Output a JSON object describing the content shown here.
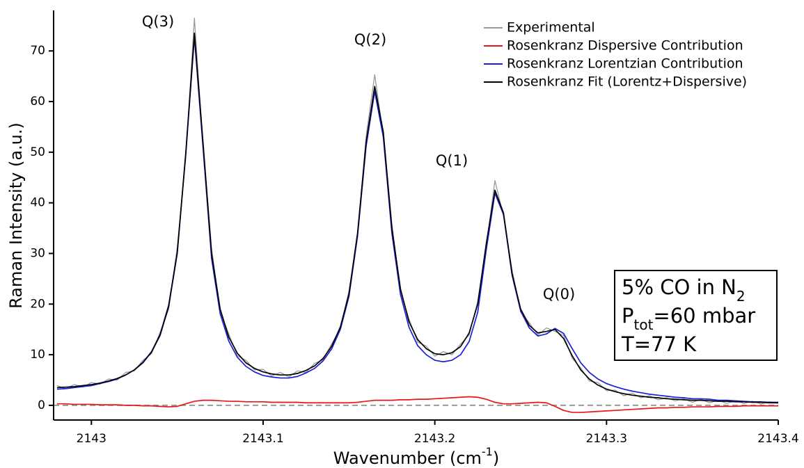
{
  "chart_data": {
    "type": "line",
    "ylabel": "Raman Intensity (a.u.)",
    "xlabel": [
      "Wavenumber (cm",
      {
        "sup": "-1"
      },
      ")"
    ],
    "xlim": [
      2142.978,
      2143.4
    ],
    "xticks": [
      2143,
      2143.1,
      2143.2,
      2143.3,
      2143.4
    ],
    "ylim": [
      -2.9,
      78
    ],
    "yticks": [
      0,
      10,
      20,
      30,
      40,
      50,
      60,
      70
    ],
    "zero_line": true,
    "legend": "upper right",
    "annotations": [
      "Q(3)",
      "Q(2)",
      "Q(1)",
      "Q(0)"
    ],
    "info_box": [
      [
        "5% CO in N",
        {
          "sub": "2"
        }
      ],
      [
        "P",
        {
          "sub": "tot"
        },
        "=60 mbar"
      ],
      [
        "T=77 K"
      ]
    ],
    "x": [
      2142.98,
      2142.985,
      2142.99,
      2142.995,
      2143,
      2143.005,
      2143.01,
      2143.015,
      2143.02,
      2143.025,
      2143.03,
      2143.035,
      2143.04,
      2143.045,
      2143.05,
      2143.055,
      2143.06,
      2143.065,
      2143.07,
      2143.075,
      2143.08,
      2143.085,
      2143.09,
      2143.095,
      2143.1,
      2143.105,
      2143.11,
      2143.115,
      2143.12,
      2143.125,
      2143.13,
      2143.135,
      2143.14,
      2143.145,
      2143.15,
      2143.155,
      2143.16,
      2143.165,
      2143.17,
      2143.175,
      2143.18,
      2143.185,
      2143.19,
      2143.195,
      2143.2,
      2143.205,
      2143.21,
      2143.215,
      2143.22,
      2143.225,
      2143.23,
      2143.235,
      2143.24,
      2143.245,
      2143.25,
      2143.255,
      2143.26,
      2143.265,
      2143.27,
      2143.275,
      2143.28,
      2143.285,
      2143.29,
      2143.295,
      2143.3,
      2143.305,
      2143.31,
      2143.315,
      2143.32,
      2143.325,
      2143.33,
      2143.335,
      2143.34,
      2143.345,
      2143.35,
      2143.355,
      2143.36,
      2143.365,
      2143.37,
      2143.375,
      2143.38,
      2143.385,
      2143.39,
      2143.395,
      2143.4
    ],
    "series": [
      {
        "name": "Experimental",
        "color": "#999999",
        "values": [
          3.9,
          3.3,
          4.1,
          3.6,
          4.5,
          4.2,
          5.2,
          5.0,
          6.5,
          6.8,
          8.9,
          10.2,
          14.4,
          19.0,
          31.2,
          49.0,
          76.5,
          51.3,
          31.0,
          18.4,
          14.1,
          9.8,
          8.9,
          7.0,
          7.1,
          5.8,
          6.5,
          5.6,
          6.8,
          6.5,
          8.3,
          9.0,
          12.2,
          15.1,
          22.6,
          33.4,
          53.1,
          65.3,
          53.2,
          35.8,
          22.4,
          17.0,
          12.5,
          11.7,
          9.7,
          10.6,
          10.0,
          12.1,
          13.9,
          20.6,
          31.4,
          44.4,
          37.4,
          26.7,
          18.5,
          16.3,
          13.9,
          15.3,
          14.6,
          13.8,
          9.3,
          7.4,
          4.8,
          4.5,
          2.9,
          3.0,
          1.9,
          2.4,
          1.5,
          1.9,
          1.1,
          1.5,
          0.9,
          1.3,
          0.6,
          1.2,
          0.5,
          1.0,
          0.4,
          0.9,
          0.4,
          0.8,
          0.3,
          0.7,
          0.4
        ]
      },
      {
        "name": "Rosenkranz Dispersive Contribution",
        "color": "#e8161b",
        "values": [
          0.3,
          0.3,
          0.2,
          0.2,
          0.2,
          0.1,
          0.1,
          0.1,
          0.0,
          0.0,
          -0.1,
          -0.1,
          -0.2,
          -0.3,
          -0.2,
          0.3,
          0.8,
          1.0,
          1.0,
          0.9,
          0.8,
          0.8,
          0.7,
          0.7,
          0.7,
          0.6,
          0.6,
          0.6,
          0.6,
          0.5,
          0.5,
          0.5,
          0.5,
          0.5,
          0.5,
          0.6,
          0.8,
          1.0,
          1.0,
          1.0,
          1.1,
          1.1,
          1.2,
          1.2,
          1.3,
          1.4,
          1.5,
          1.6,
          1.7,
          1.6,
          1.2,
          0.6,
          0.3,
          0.3,
          0.4,
          0.5,
          0.6,
          0.5,
          -0.2,
          -1.0,
          -1.4,
          -1.4,
          -1.3,
          -1.2,
          -1.1,
          -1.0,
          -0.9,
          -0.8,
          -0.7,
          -0.6,
          -0.5,
          -0.5,
          -0.4,
          -0.4,
          -0.3,
          -0.3,
          -0.3,
          -0.2,
          -0.2,
          -0.2,
          -0.1,
          -0.1,
          -0.1,
          -0.1,
          -0.1
        ]
      },
      {
        "name": "Rosenkranz Lorentzian Contribution",
        "color": "#1b1fd6",
        "values": [
          3.2,
          3.3,
          3.5,
          3.7,
          3.9,
          4.3,
          4.7,
          5.2,
          6.0,
          7.0,
          8.5,
          10.6,
          14.0,
          19.8,
          30.2,
          49.7,
          72.7,
          51.0,
          29.0,
          18.1,
          12.7,
          9.5,
          7.7,
          6.6,
          5.9,
          5.6,
          5.4,
          5.4,
          5.7,
          6.4,
          7.3,
          8.8,
          11.2,
          15.0,
          21.5,
          33.4,
          51.2,
          62.0,
          53.0,
          34.0,
          21.9,
          15.4,
          11.8,
          10.0,
          8.9,
          8.6,
          8.9,
          10.0,
          12.6,
          18.4,
          30.8,
          41.9,
          37.7,
          25.7,
          18.6,
          15.3,
          13.7,
          14.1,
          15.2,
          14.2,
          11.2,
          8.4,
          6.5,
          5.2,
          4.3,
          3.7,
          3.2,
          2.8,
          2.5,
          2.2,
          2.0,
          1.8,
          1.6,
          1.5,
          1.3,
          1.3,
          1.2,
          1.0,
          1.0,
          0.9,
          0.8,
          0.7,
          0.7,
          0.6,
          0.6
        ]
      },
      {
        "name": "Rosenkranz Fit (Lorentz+Dispersive)",
        "color": "#000000",
        "values": [
          3.5,
          3.6,
          3.7,
          3.9,
          4.1,
          4.4,
          4.8,
          5.3,
          6.0,
          7.0,
          8.4,
          10.5,
          13.8,
          19.5,
          30,
          50,
          73.5,
          52,
          30,
          19,
          13.5,
          10.3,
          8.4,
          7.3,
          6.6,
          6.2,
          6.0,
          6.0,
          6.3,
          6.9,
          7.8,
          9.3,
          11.7,
          15.5,
          22,
          34,
          52,
          63,
          54,
          35,
          23,
          16.5,
          13,
          11.2,
          10.2,
          10.0,
          10.4,
          11.6,
          14.3,
          20,
          32,
          42.5,
          38,
          26,
          19,
          15.8,
          14.3,
          14.6,
          15.0,
          13.2,
          9.8,
          7.0,
          5.2,
          4.0,
          3.2,
          2.7,
          2.3,
          2.0,
          1.8,
          1.6,
          1.5,
          1.3,
          1.2,
          1.1,
          1.0,
          1.0,
          0.9,
          0.8,
          0.8,
          0.7,
          0.7,
          0.6,
          0.6,
          0.5,
          0.5
        ]
      }
    ]
  }
}
